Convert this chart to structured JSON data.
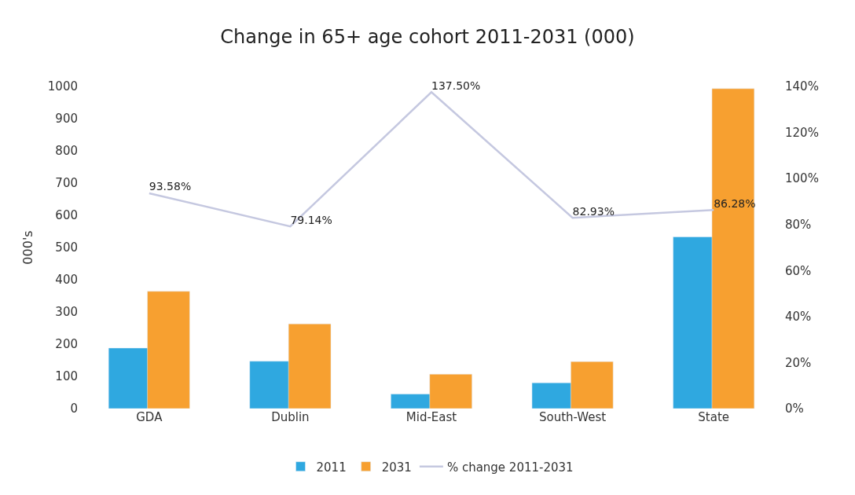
{
  "chart_data": {
    "type": "bar",
    "title": "Change in 65+ age cohort 2011-2031 (000)",
    "ylabel": "000's",
    "categories": [
      "GDA",
      "Dublin",
      "Mid-East",
      "South-West",
      "State"
    ],
    "series": [
      {
        "name": "2011",
        "color": "#2fa8e0",
        "values": [
          188,
          147,
          45,
          80,
          533
        ]
      },
      {
        "name": "2031",
        "color": "#f7a030",
        "values": [
          364,
          263,
          107,
          146,
          993
        ]
      },
      {
        "name": "% change 2011-2031",
        "type": "line",
        "axis": "y2",
        "color": "#c5c8e0",
        "values": [
          93.58,
          79.14,
          137.5,
          82.93,
          86.28
        ],
        "value_labels": [
          "93.58%",
          "79.14%",
          "137.50%",
          "82.93%",
          "86.28%"
        ]
      }
    ],
    "ylim": [
      0,
      1000
    ],
    "yticks": [
      0,
      100,
      200,
      300,
      400,
      500,
      600,
      700,
      800,
      900,
      1000
    ],
    "y2lim": [
      0,
      140
    ],
    "y2ticks": [
      {
        "value": 0,
        "label": "0%"
      },
      {
        "value": 20,
        "label": "20%"
      },
      {
        "value": 40,
        "label": "40%"
      },
      {
        "value": 60,
        "label": "60%"
      },
      {
        "value": 80,
        "label": "80%"
      },
      {
        "value": 100,
        "label": "100%"
      },
      {
        "value": 120,
        "label": "120%"
      },
      {
        "value": 140,
        "label": "140%"
      }
    ],
    "legend": "bottom",
    "marker": "none"
  }
}
